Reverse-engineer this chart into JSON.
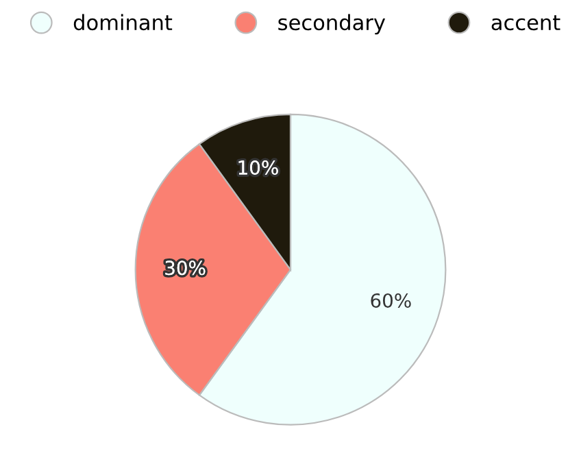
{
  "chart_data": {
    "type": "pie",
    "categories": [
      "dominant",
      "secondary",
      "accent"
    ],
    "values": [
      60,
      30,
      10
    ],
    "colors": [
      "#effffd",
      "#fa8072",
      "#1f1a0c"
    ],
    "value_labels": [
      "60%",
      "30%",
      "10%"
    ],
    "legend": "top"
  }
}
